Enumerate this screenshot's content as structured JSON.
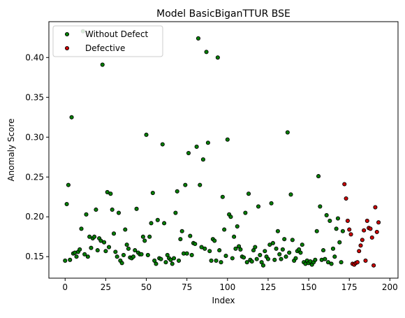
{
  "chart_data": {
    "type": "scatter",
    "title": "Model BasicBiganTTUR BSE",
    "xlabel": "Index",
    "ylabel": "Anomaly Score",
    "xlim": [
      -10,
      205
    ],
    "ylim": [
      0.123,
      0.445
    ],
    "x_ticks": [
      0,
      25,
      50,
      75,
      100,
      125,
      150,
      175,
      200
    ],
    "y_ticks": [
      0.15,
      0.2,
      0.25,
      0.3,
      0.35,
      0.4
    ],
    "y_tick_labels": [
      "0.15",
      "0.20",
      "0.25",
      "0.30",
      "0.35",
      "0.40"
    ],
    "grid": false,
    "legend_position": "top-left",
    "series": [
      {
        "name": "Without Defect",
        "color": "#008000",
        "x": [
          0,
          1,
          2,
          3,
          4,
          5,
          6,
          7,
          8,
          9,
          10,
          11,
          12,
          13,
          14,
          15,
          16,
          17,
          18,
          19,
          20,
          21,
          22,
          23,
          24,
          25,
          26,
          27,
          28,
          29,
          30,
          31,
          32,
          33,
          34,
          35,
          36,
          37,
          38,
          39,
          40,
          41,
          42,
          43,
          44,
          45,
          46,
          47,
          48,
          49,
          50,
          51,
          52,
          53,
          54,
          55,
          56,
          57,
          58,
          59,
          60,
          61,
          62,
          63,
          64,
          65,
          66,
          67,
          68,
          69,
          70,
          71,
          72,
          73,
          74,
          75,
          76,
          77,
          78,
          79,
          80,
          81,
          82,
          83,
          84,
          85,
          86,
          87,
          88,
          89,
          90,
          91,
          92,
          93,
          94,
          95,
          96,
          97,
          98,
          99,
          100,
          101,
          102,
          103,
          104,
          105,
          106,
          107,
          108,
          109,
          110,
          111,
          112,
          113,
          114,
          115,
          116,
          117,
          118,
          119,
          120,
          121,
          122,
          123,
          124,
          125,
          126,
          127,
          128,
          129,
          130,
          131,
          132,
          133,
          134,
          135,
          136,
          137,
          138,
          139,
          140,
          141,
          142,
          143,
          144,
          145,
          146,
          147,
          148,
          149,
          150,
          151,
          152,
          153,
          154,
          155,
          156,
          157,
          158,
          159,
          160,
          161,
          162,
          163,
          164,
          165,
          166,
          167,
          168,
          169,
          170,
          171
        ],
        "y": [
          0.145,
          0.216,
          0.24,
          0.146,
          0.325,
          0.154,
          0.155,
          0.15,
          0.156,
          0.159,
          0.185,
          0.433,
          0.153,
          0.203,
          0.15,
          0.175,
          0.161,
          0.173,
          0.175,
          0.209,
          0.158,
          0.173,
          0.17,
          0.391,
          0.168,
          0.157,
          0.231,
          0.162,
          0.229,
          0.209,
          0.179,
          0.156,
          0.15,
          0.205,
          0.145,
          0.142,
          0.152,
          0.184,
          0.165,
          0.16,
          0.149,
          0.148,
          0.15,
          0.158,
          0.21,
          0.155,
          0.153,
          0.153,
          0.175,
          0.17,
          0.303,
          0.152,
          0.175,
          0.192,
          0.23,
          0.145,
          0.141,
          0.196,
          0.148,
          0.147,
          0.291,
          0.192,
          0.143,
          0.152,
          0.148,
          0.146,
          0.141,
          0.148,
          0.205,
          0.232,
          0.145,
          0.172,
          0.182,
          0.154,
          0.24,
          0.154,
          0.28,
          0.176,
          0.152,
          0.167,
          0.166,
          0.288,
          0.424,
          0.24,
          0.162,
          0.272,
          0.16,
          0.407,
          0.293,
          0.157,
          0.145,
          0.172,
          0.17,
          0.145,
          0.4,
          0.158,
          0.143,
          0.225,
          0.184,
          0.151,
          0.297,
          0.203,
          0.2,
          0.148,
          0.175,
          0.16,
          0.188,
          0.163,
          0.159,
          0.15,
          0.149,
          0.205,
          0.143,
          0.229,
          0.146,
          0.144,
          0.158,
          0.162,
          0.147,
          0.213,
          0.152,
          0.143,
          0.139,
          0.157,
          0.15,
          0.147,
          0.165,
          0.217,
          0.167,
          0.146,
          0.16,
          0.182,
          0.153,
          0.147,
          0.159,
          0.172,
          0.15,
          0.306,
          0.155,
          0.228,
          0.171,
          0.145,
          0.148,
          0.157,
          0.159,
          0.155,
          0.165,
          0.143,
          0.141,
          0.145,
          0.142,
          0.144,
          0.14,
          0.143,
          0.146,
          0.182,
          0.251,
          0.213,
          0.146,
          0.158,
          0.147,
          0.202,
          0.143,
          0.195,
          0.141,
          0.16,
          0.15,
          0.185,
          0.198,
          0.168,
          0.143,
          0.182
        ],
        "show_in_legend": true
      },
      {
        "name": "Defective",
        "color": "#cc0000",
        "x": [
          172,
          173,
          174,
          175,
          176,
          177,
          178,
          179,
          180,
          181,
          182,
          183,
          184,
          185,
          186,
          187,
          188,
          189,
          190,
          191,
          192,
          193
        ],
        "y": [
          0.241,
          0.223,
          0.195,
          0.184,
          0.178,
          0.141,
          0.14,
          0.142,
          0.143,
          0.157,
          0.164,
          0.171,
          0.183,
          0.145,
          0.195,
          0.186,
          0.185,
          0.174,
          0.139,
          0.212,
          0.181,
          0.193
        ],
        "show_in_legend": true
      }
    ]
  }
}
